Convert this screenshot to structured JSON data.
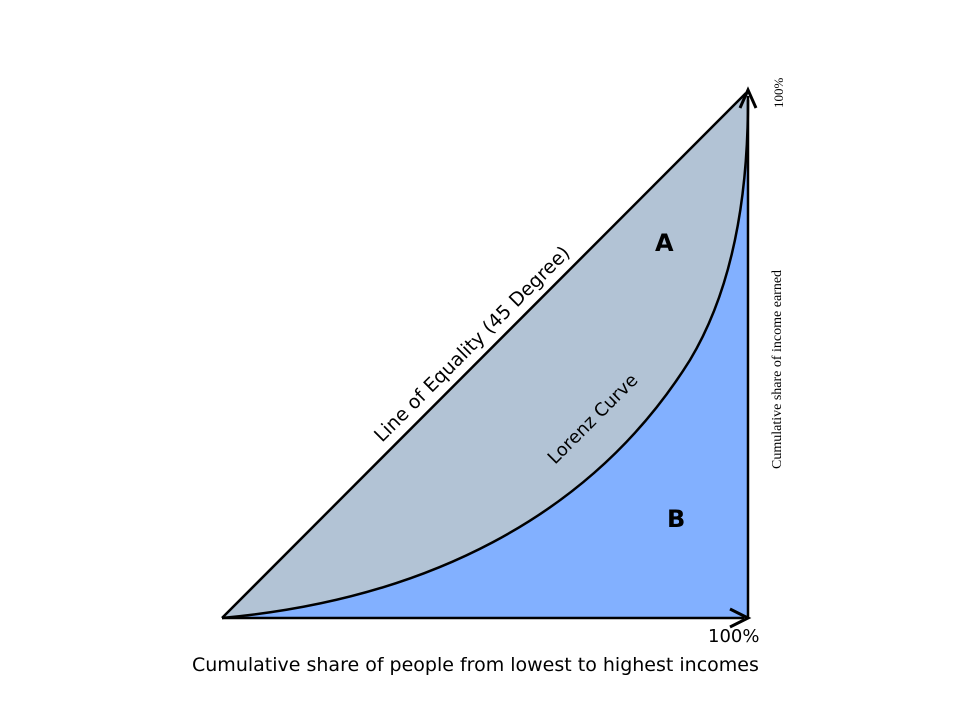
{
  "diagram": {
    "x_axis_label": "Cumulative share of people from lowest to highest incomes",
    "x_axis_end_label": "100%",
    "y_axis_label": "Cumulative share of income earned",
    "y_axis_end_label": "100%",
    "equality_line_label": "Line of Equality (45 Degree)",
    "lorenz_curve_label": "Lorenz Curve",
    "region_a_label": "A",
    "region_b_label": "B",
    "colors": {
      "region_a_fill": "#b2c3d5",
      "region_b_fill": "#82b0ff",
      "stroke": "#000000"
    }
  }
}
